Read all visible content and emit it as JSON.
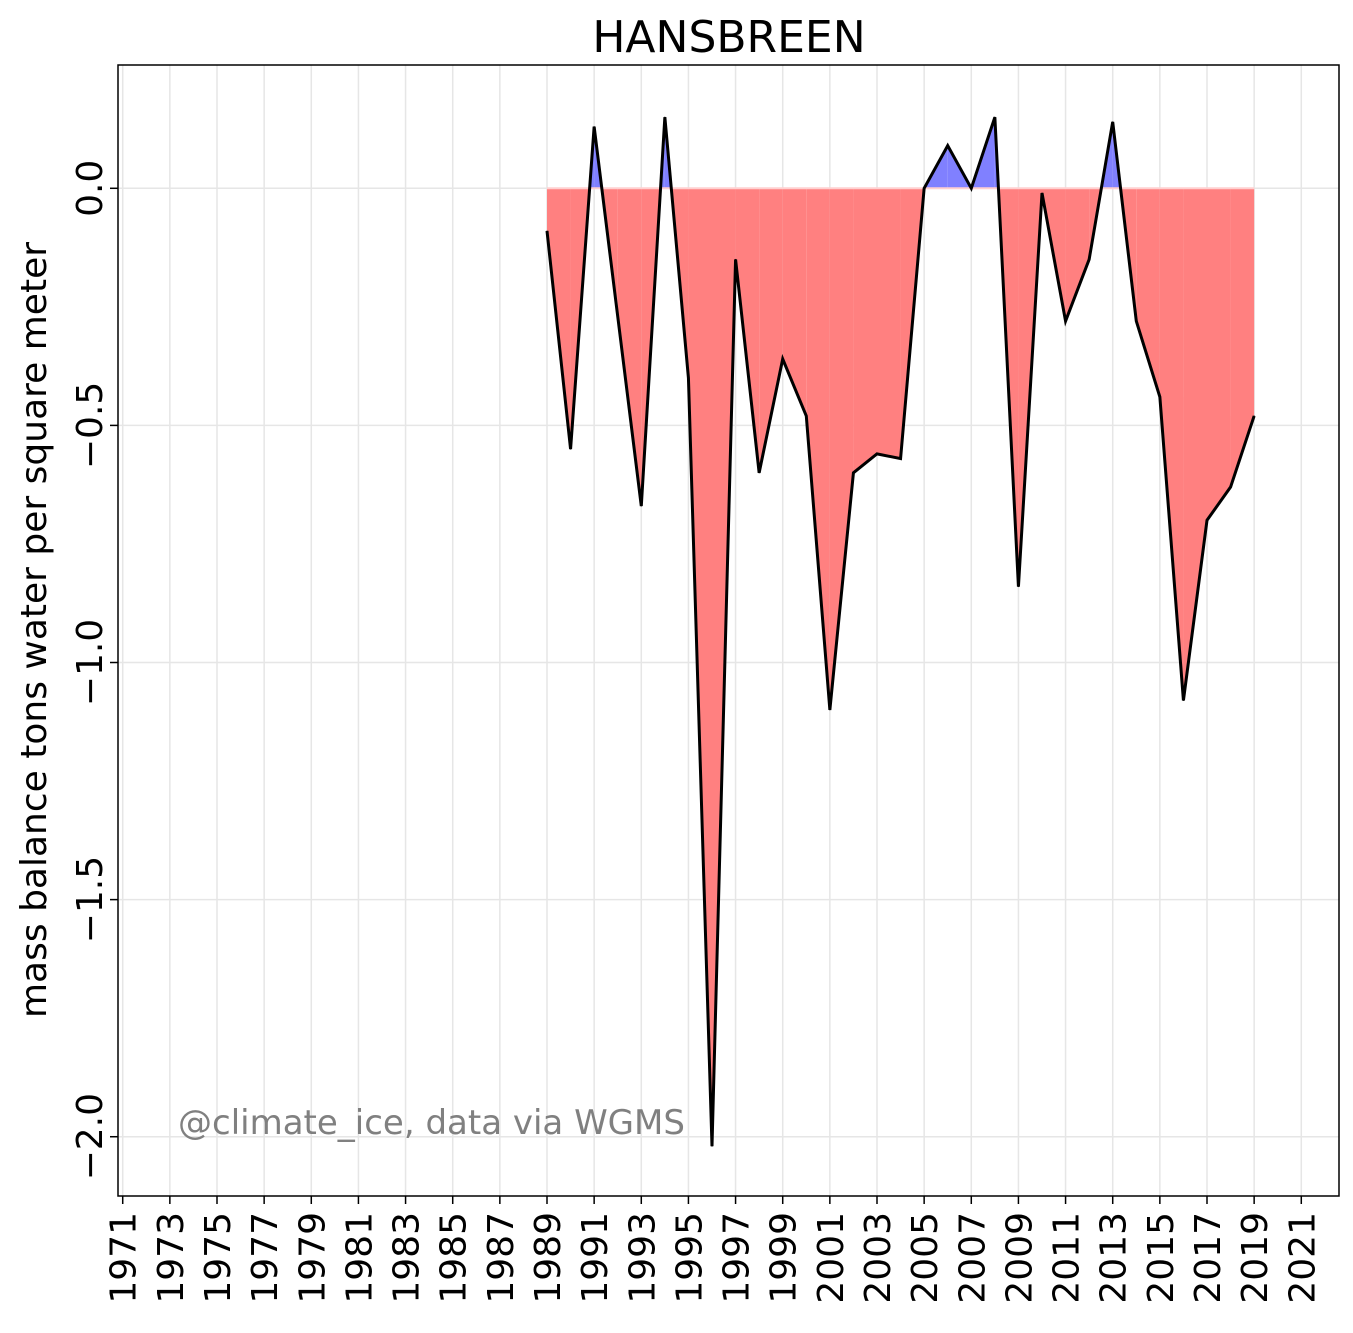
{
  "chart_data": {
    "type": "area",
    "title": "HANSBREEN",
    "xlabel": "",
    "ylabel": "mass balance tons water per square meter",
    "xlim": [
      1970.8,
      2022.6
    ],
    "ylim": [
      -2.125,
      0.26
    ],
    "grid": true,
    "xticks": [
      1971,
      1973,
      1975,
      1977,
      1979,
      1981,
      1983,
      1985,
      1987,
      1989,
      1991,
      1993,
      1995,
      1997,
      1999,
      2001,
      2003,
      2005,
      2007,
      2009,
      2011,
      2013,
      2015,
      2017,
      2019,
      2021
    ],
    "yticks": [
      0.0,
      -0.5,
      -1.0,
      -1.5,
      -2.0
    ],
    "ytick_labels": [
      "0.0",
      "−0.5",
      "−1.0",
      "−1.5",
      "−2.0"
    ],
    "positive_color": "#8080ff",
    "negative_color": "#ff8080",
    "line_color": "#000000",
    "baseline": 0.0,
    "x": [
      1989,
      1990,
      1991,
      1992,
      1993,
      1994,
      1995,
      1996,
      1997,
      1998,
      1999,
      2000,
      2001,
      2002,
      2003,
      2004,
      2005,
      2006,
      2007,
      2008,
      2009,
      2010,
      2011,
      2012,
      2013,
      2014,
      2015,
      2016,
      2017,
      2018,
      2019
    ],
    "values": [
      -0.09,
      -0.55,
      0.13,
      -0.27,
      -0.67,
      0.15,
      -0.4,
      -2.02,
      -0.15,
      -0.6,
      -0.36,
      -0.48,
      -1.1,
      -0.6,
      -0.56,
      -0.57,
      0.0,
      0.09,
      0.0,
      0.15,
      -0.84,
      -0.01,
      -0.28,
      -0.15,
      0.14,
      -0.28,
      -0.44,
      -1.08,
      -0.7,
      -0.63,
      -0.48
    ],
    "annotation": "@climate_ice, data via WGMS"
  }
}
